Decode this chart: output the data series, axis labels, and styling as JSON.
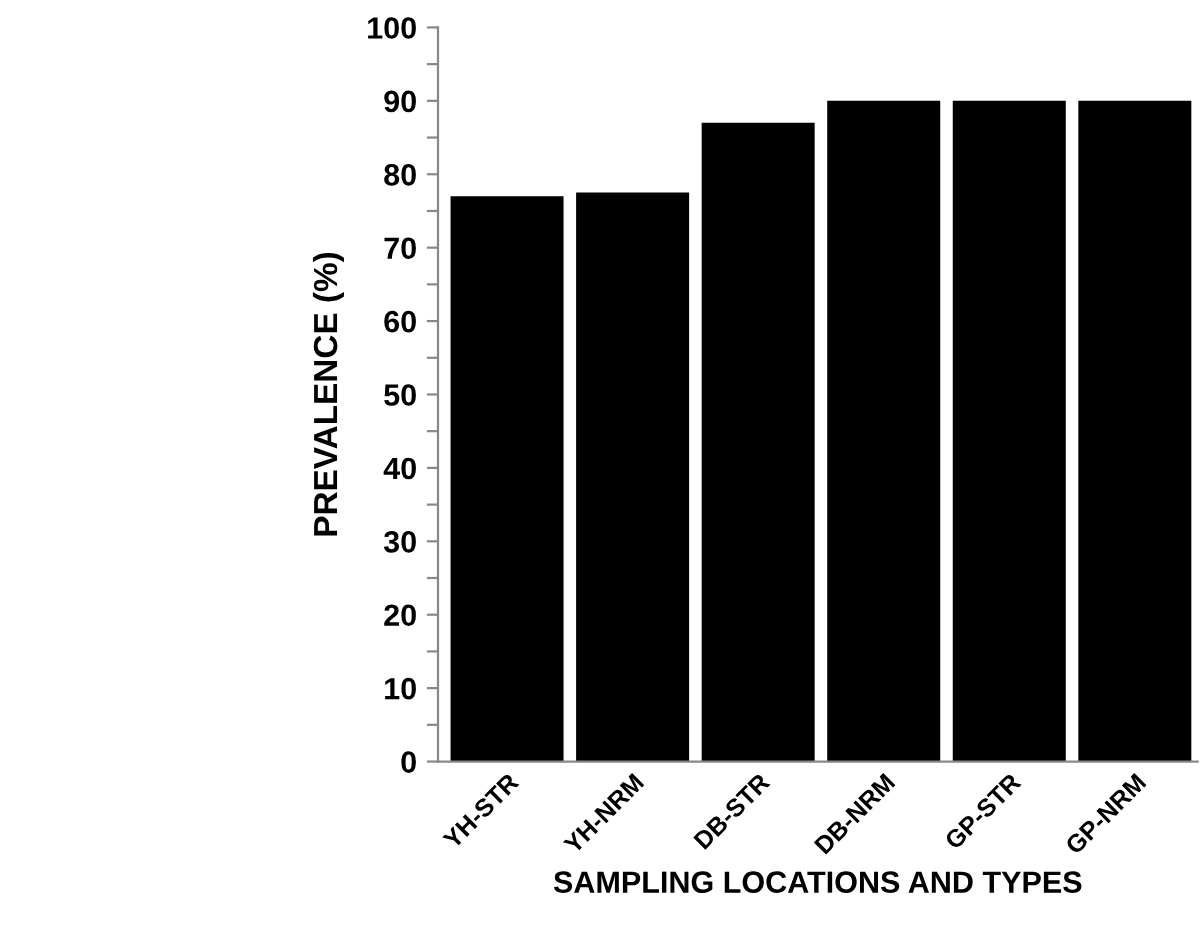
{
  "chart_data": {
    "type": "bar",
    "xlabel": "SAMPLING LOCATIONS AND TYPES",
    "ylabel": "PREVALENCE (%)",
    "categories": [
      "YH-STR",
      "YH-NRM",
      "DB-STR",
      "DB-NRM",
      "GP-STR",
      "GP-NRM"
    ],
    "values": [
      77,
      77.5,
      87,
      90,
      90,
      90
    ],
    "color": "#000000",
    "ylim": [
      0,
      100
    ],
    "yticks": [
      0,
      {
        "value": 5,
        "label": null
      },
      10,
      {
        "value": 15,
        "label": null
      },
      20,
      {
        "value": 25,
        "label": null
      },
      30,
      {
        "value": 35,
        "label": null
      },
      40,
      {
        "value": 45,
        "label": null
      },
      50,
      {
        "value": 55,
        "label": null
      },
      60,
      {
        "value": 65,
        "label": null
      },
      70,
      {
        "value": 75,
        "label": null
      },
      80,
      {
        "value": 85,
        "label": null
      },
      90,
      {
        "value": 95,
        "label": null
      },
      100
    ],
    "grid": false,
    "legend": false
  }
}
